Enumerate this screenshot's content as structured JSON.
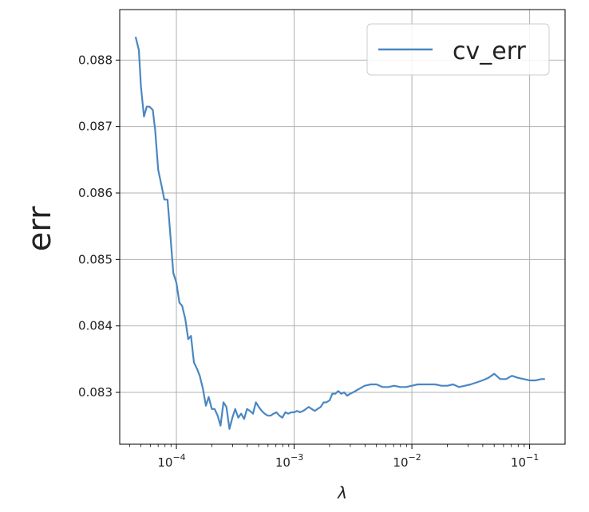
{
  "chart_data": {
    "type": "line",
    "xlabel": "λ",
    "ylabel": "err",
    "x_scale": "log",
    "xlim": [
      3.3e-05,
      0.2
    ],
    "ylim": [
      0.08222,
      0.08876
    ],
    "grid": true,
    "legend_position": "top-right",
    "x_ticks": [
      {
        "value": 0.0001,
        "label": "10−4"
      },
      {
        "value": 0.001,
        "label": "10−3"
      },
      {
        "value": 0.01,
        "label": "10−2"
      },
      {
        "value": 0.1,
        "label": "10−1"
      }
    ],
    "y_ticks": [
      {
        "value": 0.083,
        "label": "0.083"
      },
      {
        "value": 0.084,
        "label": "0.084"
      },
      {
        "value": 0.085,
        "label": "0.085"
      },
      {
        "value": 0.086,
        "label": "0.086"
      },
      {
        "value": 0.087,
        "label": "0.087"
      },
      {
        "value": 0.088,
        "label": "0.088"
      }
    ],
    "series": [
      {
        "name": "cv_err",
        "color": "#4a87c2",
        "x": [
          4.5e-05,
          4.8e-05,
          5e-05,
          5.3e-05,
          5.6e-05,
          5.9e-05,
          6.3e-05,
          6.6e-05,
          7e-05,
          7.5e-05,
          7.9e-05,
          8.4e-05,
          8.9e-05,
          9.4e-05,
          0.0001,
          0.000106,
          0.000112,
          0.000119,
          0.000126,
          0.000133,
          0.000141,
          0.00015,
          0.000158,
          0.000168,
          0.000178,
          0.000188,
          0.0002,
          0.000211,
          0.000224,
          0.000237,
          0.000251,
          0.000266,
          0.000282,
          0.000299,
          0.000316,
          0.000335,
          0.000355,
          0.000376,
          0.000398,
          0.000422,
          0.000447,
          0.000473,
          0.000501,
          0.000531,
          0.000562,
          0.000596,
          0.000631,
          0.000668,
          0.000708,
          0.00075,
          0.000794,
          0.000841,
          0.000891,
          0.000944,
          0.001,
          0.00106,
          0.00112,
          0.00119,
          0.00126,
          0.00133,
          0.00141,
          0.0015,
          0.00158,
          0.00168,
          0.00178,
          0.00188,
          0.002,
          0.00211,
          0.00224,
          0.00237,
          0.00251,
          0.00266,
          0.00282,
          0.00299,
          0.00316,
          0.00355,
          0.00398,
          0.00447,
          0.00501,
          0.00562,
          0.00631,
          0.00708,
          0.00794,
          0.00891,
          0.01,
          0.0112,
          0.0126,
          0.0141,
          0.0158,
          0.0178,
          0.02,
          0.0224,
          0.0251,
          0.0282,
          0.0316,
          0.0355,
          0.0398,
          0.0447,
          0.0501,
          0.0562,
          0.0631,
          0.0708,
          0.0794,
          0.0891,
          0.1,
          0.112,
          0.126,
          0.135
        ],
        "values": [
          0.08835,
          0.08815,
          0.0876,
          0.08715,
          0.0873,
          0.0873,
          0.08725,
          0.08695,
          0.08635,
          0.0861,
          0.0859,
          0.0859,
          0.08535,
          0.0848,
          0.08465,
          0.08435,
          0.0843,
          0.0841,
          0.0838,
          0.08385,
          0.08345,
          0.08335,
          0.08325,
          0.08305,
          0.0828,
          0.08293,
          0.08275,
          0.08275,
          0.08265,
          0.0825,
          0.08285,
          0.08278,
          0.08245,
          0.08262,
          0.08275,
          0.08262,
          0.08268,
          0.0826,
          0.08275,
          0.08272,
          0.08268,
          0.08285,
          0.08278,
          0.08272,
          0.08268,
          0.08265,
          0.08265,
          0.08268,
          0.0827,
          0.08265,
          0.08262,
          0.0827,
          0.08268,
          0.0827,
          0.0827,
          0.08272,
          0.0827,
          0.08272,
          0.08275,
          0.08278,
          0.08275,
          0.08272,
          0.08275,
          0.08278,
          0.08285,
          0.08285,
          0.08288,
          0.08298,
          0.08298,
          0.08302,
          0.08298,
          0.083,
          0.08295,
          0.08298,
          0.083,
          0.08305,
          0.0831,
          0.08312,
          0.08312,
          0.08308,
          0.08308,
          0.0831,
          0.08308,
          0.08308,
          0.0831,
          0.08312,
          0.08312,
          0.08312,
          0.08312,
          0.0831,
          0.0831,
          0.08312,
          0.08308,
          0.0831,
          0.08312,
          0.08315,
          0.08318,
          0.08322,
          0.08328,
          0.0832,
          0.0832,
          0.08325,
          0.08322,
          0.0832,
          0.08318,
          0.08318,
          0.0832,
          0.0832
        ]
      }
    ]
  }
}
